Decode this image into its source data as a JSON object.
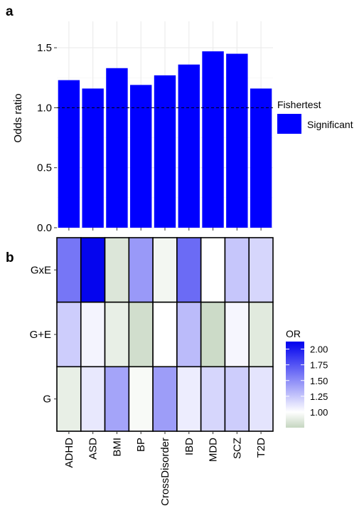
{
  "chart_data": [
    {
      "panel_label": "a",
      "type": "bar",
      "categories": [
        "ADHD",
        "ASD",
        "BMI",
        "BP",
        "CrossDisorder",
        "IBD",
        "MDD",
        "SCZ",
        "T2D"
      ],
      "values": [
        1.23,
        1.16,
        1.33,
        1.19,
        1.27,
        1.36,
        1.47,
        1.45,
        1.16
      ],
      "ylabel": "Odds ratio",
      "ylim": [
        0,
        1.72
      ],
      "yticks": [
        "0.0",
        "0.5",
        "1.0",
        "1.5"
      ],
      "reference_line": 1.0,
      "grid": true,
      "bar_color": "#0000ff",
      "legend": {
        "title": "Fishertest",
        "items": [
          {
            "label": "Significant",
            "color": "#0000ff"
          }
        ],
        "position": "right"
      }
    },
    {
      "panel_label": "b",
      "type": "heatmap",
      "x": [
        "ADHD",
        "ASD",
        "BMI",
        "BP",
        "CrossDisorder",
        "IBD",
        "MDD",
        "SCZ",
        "T2D"
      ],
      "y": [
        "GxE",
        "G+E",
        "G"
      ],
      "values": [
        [
          1.6,
          2.1,
          0.85,
          1.45,
          0.95,
          1.65,
          1.0,
          1.25,
          1.18
        ],
        [
          1.22,
          1.05,
          0.9,
          0.8,
          1.0,
          1.3,
          0.78,
          1.04,
          0.87
        ],
        [
          0.9,
          1.1,
          1.4,
          0.97,
          1.43,
          1.08,
          1.18,
          1.22,
          1.12
        ]
      ],
      "legend": {
        "title": "OR",
        "ticks": [
          "1.00",
          "1.25",
          "1.50",
          "1.75",
          "2.00"
        ],
        "range": [
          0.75,
          2.12
        ],
        "colors": {
          "low": "#c5d6c0",
          "mid": "#ffffff",
          "high": "#0000ee"
        },
        "midpoint": 1.0,
        "position": "right"
      }
    }
  ]
}
